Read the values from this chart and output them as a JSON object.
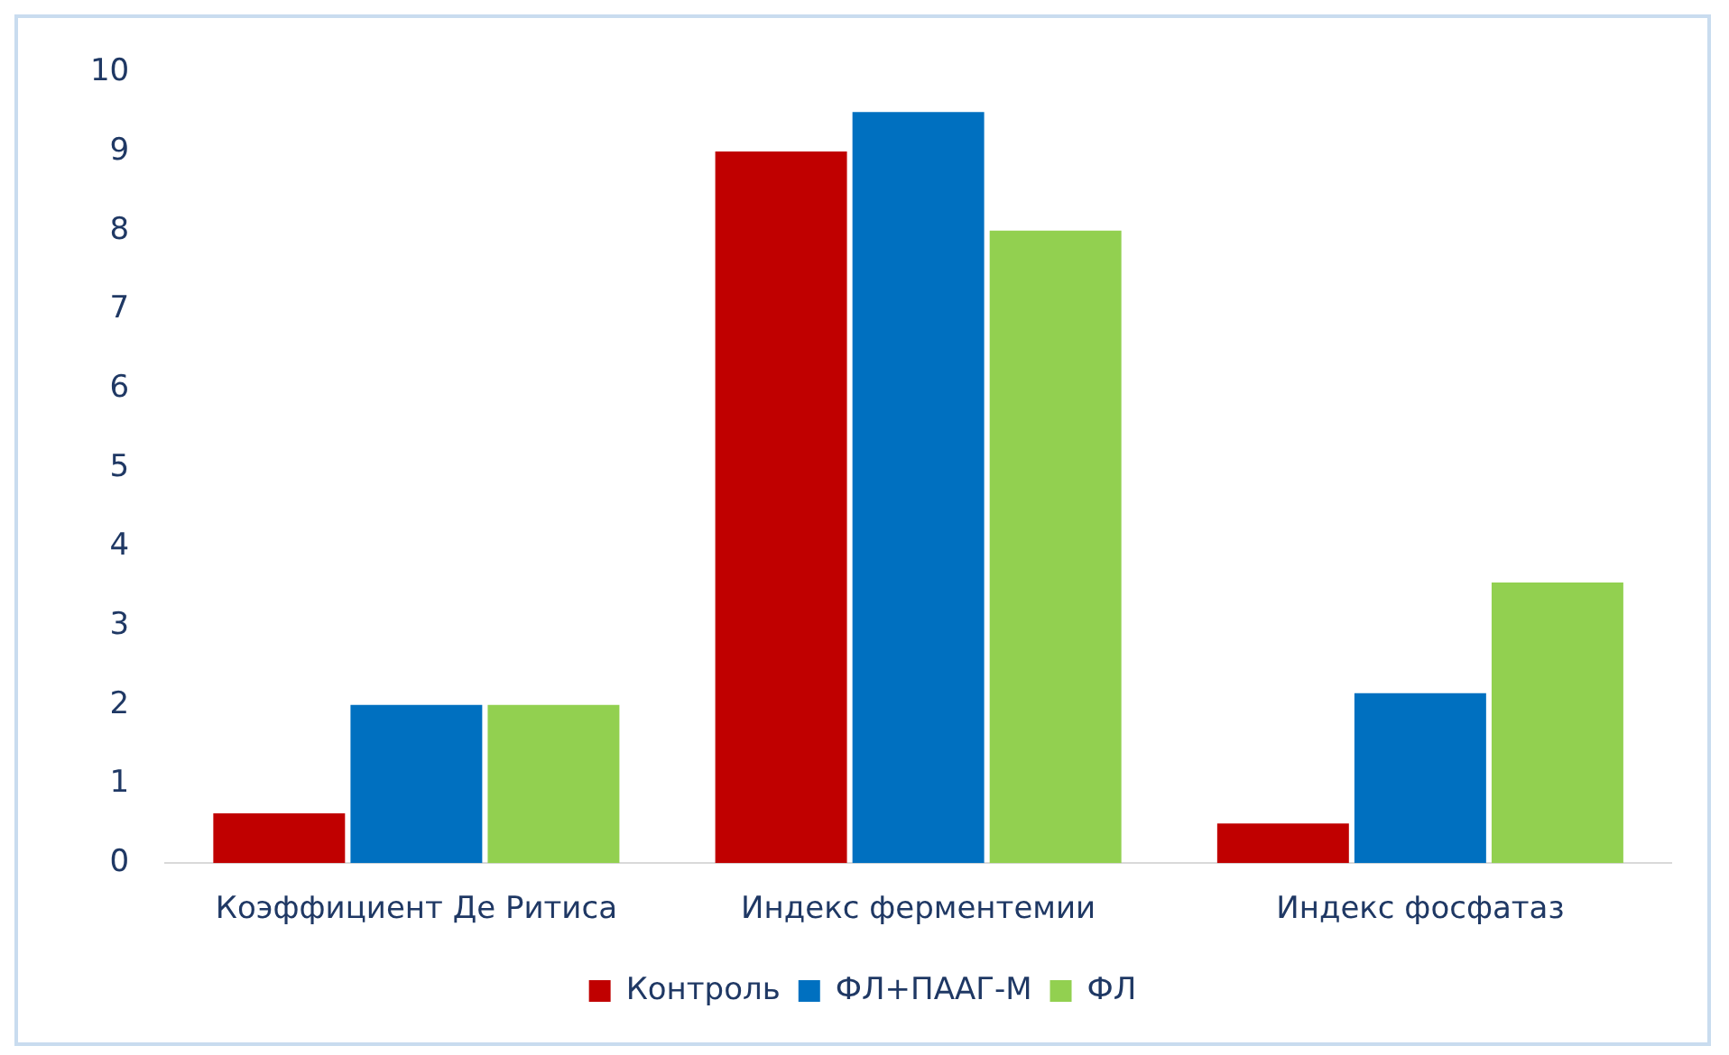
{
  "chart_data": {
    "type": "bar",
    "categories": [
      "Коэффициент Де Ритиса",
      "Индекс ферментемии",
      "Индекс фосфатаз"
    ],
    "series": [
      {
        "name": "Контроль",
        "color": "#c00000",
        "values": [
          0.63,
          9,
          0.5
        ]
      },
      {
        "name": "ФЛ+ПААГ-М",
        "color": "#0070c0",
        "values": [
          2,
          9.5,
          2.15
        ]
      },
      {
        "name": "ФЛ",
        "color": "#92d050",
        "values": [
          2,
          8,
          3.55
        ]
      }
    ],
    "ylim": [
      0,
      10
    ],
    "yticks": [
      0,
      1,
      2,
      3,
      4,
      5,
      6,
      7,
      8,
      9,
      10
    ],
    "grid": false,
    "legend": "bottom"
  }
}
